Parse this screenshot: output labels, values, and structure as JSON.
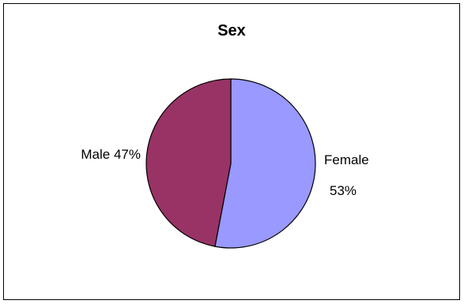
{
  "chart_data": {
    "type": "pie",
    "title": "Sex",
    "slices": [
      {
        "label": "Female",
        "value": 53,
        "percent_label": "53%",
        "color": "#9999ff"
      },
      {
        "label": "Male",
        "value": 47,
        "percent_label": "47%",
        "color": "#993366"
      }
    ],
    "legend": "none",
    "data_labels": "category name and percentage",
    "start_angle": "12 o'clock, clockwise",
    "border_color": "#000000",
    "background_color": "#ffffff"
  }
}
